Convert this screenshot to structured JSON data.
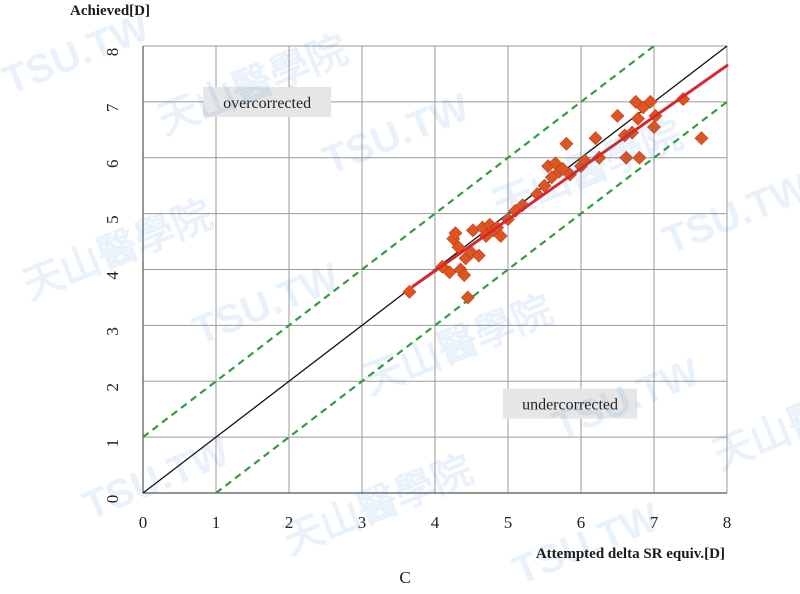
{
  "chart_data": {
    "type": "scatter",
    "title": "",
    "panel_label": "C",
    "xlabel": "Attempted delta SR equiv.[D]",
    "ylabel": "Achieved[D]",
    "xlim": [
      0,
      8
    ],
    "ylim": [
      0,
      8
    ],
    "x_ticks": [
      0,
      1,
      2,
      3,
      4,
      5,
      6,
      7,
      8
    ],
    "y_ticks": [
      0,
      1,
      2,
      3,
      4,
      5,
      6,
      7,
      8
    ],
    "grid": true,
    "annotations": {
      "overcorrected": {
        "text": "overcorrected",
        "at": [
          1.7,
          7.0
        ]
      },
      "undercorrected": {
        "text": "undercorrected",
        "at": [
          5.85,
          1.6
        ]
      }
    },
    "reference_lines": [
      {
        "name": "identity",
        "points": [
          [
            0,
            0
          ],
          [
            8,
            8
          ]
        ],
        "color": "#111111",
        "style": "solid"
      },
      {
        "name": "plus-one",
        "points": [
          [
            0,
            1
          ],
          [
            7,
            8
          ]
        ],
        "color": "#2e9e3e",
        "style": "dashed"
      },
      {
        "name": "minus-one",
        "points": [
          [
            1,
            0
          ],
          [
            8,
            7
          ]
        ],
        "color": "#2e9e3e",
        "style": "dashed"
      }
    ],
    "fit_line": {
      "points": [
        [
          3.7,
          3.7
        ],
        [
          8.0,
          7.65
        ]
      ],
      "color": "#d6282d"
    },
    "marker_color": "#e0551f",
    "points": [
      [
        3.65,
        3.6
      ],
      [
        4.1,
        4.05
      ],
      [
        4.2,
        3.95
      ],
      [
        4.25,
        4.55
      ],
      [
        4.28,
        4.65
      ],
      [
        4.32,
        4.4
      ],
      [
        4.35,
        4.0
      ],
      [
        4.4,
        3.9
      ],
      [
        4.42,
        4.2
      ],
      [
        4.45,
        3.5
      ],
      [
        4.5,
        4.3
      ],
      [
        4.52,
        4.7
      ],
      [
        4.6,
        4.25
      ],
      [
        4.65,
        4.75
      ],
      [
        4.7,
        4.6
      ],
      [
        4.75,
        4.8
      ],
      [
        4.8,
        4.7
      ],
      [
        4.85,
        4.75
      ],
      [
        4.9,
        4.6
      ],
      [
        5.0,
        4.9
      ],
      [
        5.1,
        5.05
      ],
      [
        5.2,
        5.15
      ],
      [
        5.4,
        5.35
      ],
      [
        5.5,
        5.5
      ],
      [
        5.55,
        5.85
      ],
      [
        5.6,
        5.65
      ],
      [
        5.65,
        5.9
      ],
      [
        5.7,
        5.75
      ],
      [
        5.75,
        5.8
      ],
      [
        5.8,
        6.25
      ],
      [
        5.85,
        5.7
      ],
      [
        6.0,
        5.85
      ],
      [
        6.05,
        5.95
      ],
      [
        6.2,
        6.35
      ],
      [
        6.25,
        6.0
      ],
      [
        6.5,
        6.75
      ],
      [
        6.6,
        6.4
      ],
      [
        6.62,
        6.0
      ],
      [
        6.7,
        6.45
      ],
      [
        6.75,
        7.0
      ],
      [
        6.78,
        6.7
      ],
      [
        6.8,
        6.0
      ],
      [
        6.85,
        6.9
      ],
      [
        6.95,
        7.0
      ],
      [
        7.0,
        6.55
      ],
      [
        7.02,
        6.75
      ],
      [
        7.4,
        7.05
      ],
      [
        7.65,
        6.35
      ]
    ]
  },
  "watermark": {
    "texts": [
      "TSU.TW",
      "天山醫學院",
      "TSU.TW",
      "天山醫學院",
      "TSU.TW",
      "天山醫學院",
      "TSU.TW",
      "天山醫學院",
      "TSU.TW",
      "天山醫學院",
      "TSU.TW",
      "天山醫學院",
      "TSU.TW"
    ]
  }
}
